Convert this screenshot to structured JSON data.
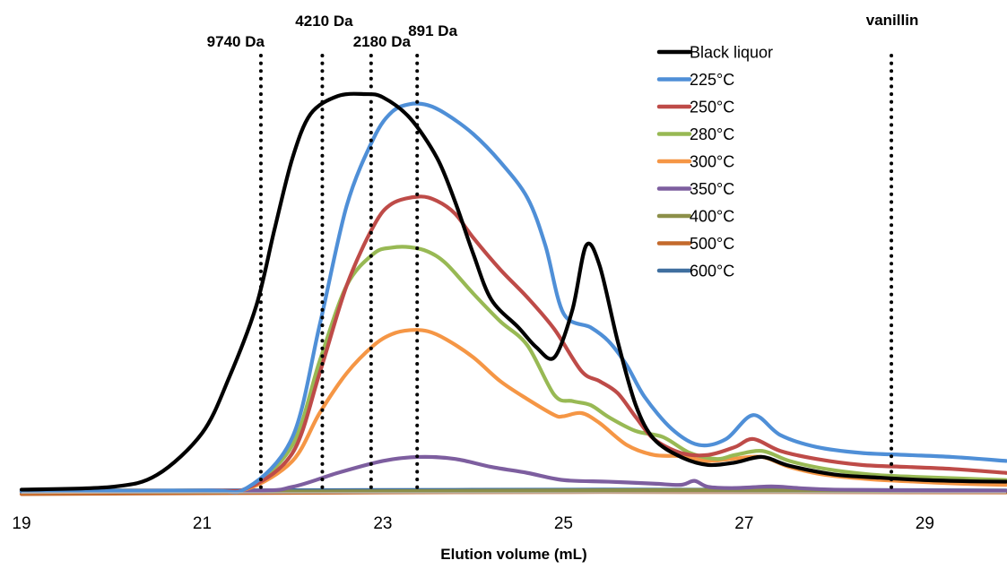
{
  "chart_data": {
    "type": "line",
    "title": "",
    "xlabel": "Elution volume (mL)",
    "ylabel": "",
    "xlim": [
      19,
      29.9
    ],
    "ylim": [
      0,
      100
    ],
    "xticks": [
      19,
      21,
      23,
      25,
      27,
      29
    ],
    "xtick_labels": [
      "19",
      "21",
      "23",
      "25",
      "27",
      "29"
    ],
    "grid": false,
    "legend_position": "top-right",
    "markers": [
      {
        "label": "9740 Da",
        "x": 21.65
      },
      {
        "label": "4210 Da",
        "x": 22.33
      },
      {
        "label": "2180 Da",
        "x": 22.87
      },
      {
        "label": "891 Da",
        "x": 23.38
      },
      {
        "label": "vanillin",
        "x": 28.63
      }
    ],
    "series": [
      {
        "name": "Black liquor",
        "color": "#000000",
        "x": [
          19.0,
          20.0,
          20.5,
          21.0,
          21.3,
          21.6,
          21.8,
          22.0,
          22.2,
          22.5,
          22.8,
          23.0,
          23.3,
          23.6,
          23.8,
          24.0,
          24.2,
          24.5,
          24.7,
          24.9,
          25.1,
          25.25,
          25.4,
          25.6,
          25.8,
          26.0,
          26.3,
          26.6,
          26.9,
          27.2,
          27.5,
          28.0,
          28.5,
          29.0,
          29.5,
          29.9
        ],
        "y": [
          0.8,
          1.5,
          4.5,
          15.0,
          29.0,
          47.0,
          66.0,
          84.0,
          95.0,
          99.5,
          100.0,
          99.2,
          94.0,
          84.0,
          73.0,
          60.0,
          48.5,
          41.5,
          36.5,
          34.0,
          46.0,
          62.0,
          57.0,
          38.0,
          22.0,
          13.5,
          9.0,
          7.0,
          7.6,
          9.0,
          6.8,
          4.6,
          3.8,
          3.2,
          2.9,
          2.8
        ]
      },
      {
        "name": "225°C",
        "color": "#4f8fd7",
        "x": [
          19.0,
          21.0,
          21.5,
          22.0,
          22.3,
          22.6,
          22.9,
          23.1,
          23.3,
          23.5,
          23.7,
          24.0,
          24.3,
          24.6,
          24.8,
          25.0,
          25.3,
          25.5,
          25.7,
          25.9,
          26.2,
          26.5,
          26.8,
          27.1,
          27.4,
          27.8,
          28.3,
          28.8,
          29.3,
          29.9
        ],
        "y": [
          0.3,
          0.6,
          1.3,
          14.0,
          42.0,
          72.0,
          89.0,
          95.5,
          97.5,
          97.2,
          95.0,
          90.0,
          83.0,
          74.0,
          62.0,
          45.0,
          41.5,
          38.0,
          32.0,
          24.0,
          16.0,
          12.0,
          13.5,
          19.5,
          14.5,
          11.5,
          10.0,
          9.5,
          9.0,
          8.0
        ]
      },
      {
        "name": "250°C",
        "color": "#be4b48",
        "x": [
          19.0,
          21.0,
          21.5,
          22.0,
          22.3,
          22.6,
          22.9,
          23.1,
          23.4,
          23.6,
          23.8,
          24.0,
          24.3,
          24.6,
          24.9,
          25.2,
          25.4,
          25.6,
          25.8,
          26.0,
          26.3,
          26.6,
          26.9,
          27.1,
          27.4,
          27.8,
          28.3,
          28.8,
          29.3,
          29.9
        ],
        "y": [
          0.3,
          0.6,
          1.2,
          10.0,
          30.0,
          52.0,
          67.0,
          72.5,
          74.3,
          73.2,
          70.0,
          64.0,
          56.0,
          49.0,
          41.0,
          30.5,
          28.0,
          25.0,
          19.0,
          13.5,
          10.0,
          9.5,
          11.5,
          13.5,
          10.5,
          8.5,
          7.0,
          6.5,
          6.0,
          5.0
        ]
      },
      {
        "name": "280°C",
        "color": "#98b954",
        "x": [
          19.0,
          21.0,
          21.5,
          22.0,
          22.3,
          22.6,
          22.9,
          23.1,
          23.3,
          23.5,
          23.7,
          24.0,
          24.3,
          24.6,
          24.9,
          25.1,
          25.3,
          25.5,
          25.8,
          26.1,
          26.4,
          26.7,
          26.9,
          27.2,
          27.5,
          27.9,
          28.4,
          28.9,
          29.4,
          29.9
        ],
        "y": [
          0.3,
          0.6,
          1.2,
          12.0,
          33.0,
          52.0,
          60.0,
          61.5,
          61.6,
          60.5,
          57.5,
          50.0,
          43.0,
          37.0,
          24.5,
          23.0,
          22.0,
          19.0,
          15.5,
          14.0,
          10.0,
          8.5,
          9.5,
          10.5,
          8.0,
          6.0,
          4.6,
          4.0,
          3.6,
          3.2
        ]
      },
      {
        "name": "300°C",
        "color": "#f59645",
        "x": [
          19.0,
          21.0,
          21.5,
          22.0,
          22.3,
          22.6,
          22.9,
          23.1,
          23.3,
          23.5,
          23.7,
          24.0,
          24.3,
          24.6,
          24.9,
          25.0,
          25.2,
          25.4,
          25.7,
          26.0,
          26.3,
          26.6,
          26.9,
          27.2,
          27.5,
          27.9,
          28.4,
          28.9,
          29.4,
          29.9
        ],
        "y": [
          0.2,
          0.5,
          1.0,
          8.0,
          20.0,
          30.0,
          37.0,
          39.8,
          40.8,
          40.5,
          38.5,
          34.0,
          28.0,
          23.5,
          19.5,
          19.2,
          20.0,
          17.5,
          12.0,
          9.5,
          9.2,
          8.0,
          8.6,
          9.0,
          6.5,
          4.5,
          3.4,
          2.8,
          2.3,
          2.0
        ]
      },
      {
        "name": "350°C",
        "color": "#7d5e9f",
        "x": [
          19.0,
          21.5,
          22.0,
          22.5,
          23.0,
          23.4,
          23.8,
          24.2,
          24.6,
          25.0,
          25.5,
          26.0,
          26.3,
          26.45,
          26.6,
          26.9,
          27.3,
          27.6,
          28.0,
          29.0,
          29.9
        ],
        "y": [
          0.3,
          0.5,
          1.5,
          5.0,
          8.0,
          9.0,
          8.5,
          6.5,
          5.0,
          3.2,
          2.8,
          2.3,
          2.0,
          3.0,
          1.5,
          1.2,
          1.6,
          1.2,
          0.8,
          0.6,
          0.5
        ]
      },
      {
        "name": "400°C",
        "color": "#8c8f49",
        "x": [
          19.0,
          21.5,
          23.0,
          25.0,
          26.5,
          28.0,
          29.9
        ],
        "y": [
          0.3,
          0.3,
          0.4,
          0.6,
          0.7,
          0.5,
          0.4
        ]
      },
      {
        "name": "500°C",
        "color": "#c46a2c",
        "x": [
          19.0,
          21.0,
          23.0,
          25.0,
          27.0,
          29.9
        ],
        "y": [
          -0.3,
          -0.1,
          0.1,
          0.2,
          0.2,
          0.1
        ]
      },
      {
        "name": "600°C",
        "color": "#3f6f9f",
        "x": [
          19.0,
          21.0,
          23.0,
          25.0,
          27.0,
          29.9
        ],
        "y": [
          0.6,
          0.6,
          0.7,
          0.8,
          0.8,
          0.6
        ]
      }
    ]
  }
}
